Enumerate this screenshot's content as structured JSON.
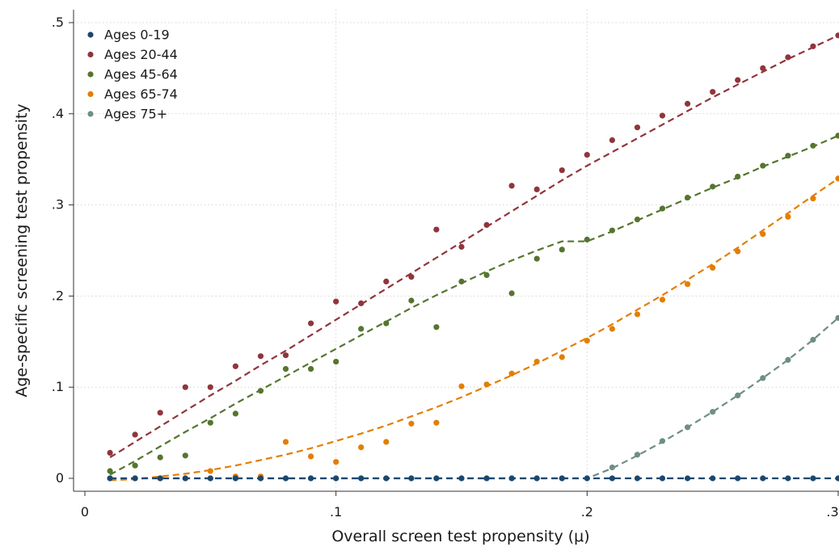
{
  "chart_data": {
    "type": "scatter",
    "xlabel": "Overall screen test propensity (μ)",
    "ylabel": "Age-specific screening test propensity",
    "xlim": [
      0,
      0.3
    ],
    "ylim": [
      0,
      0.5
    ],
    "x_ticks": [
      0,
      0.1,
      0.2,
      0.3
    ],
    "x_tick_labels": [
      "0",
      ".1",
      ".2",
      ".3"
    ],
    "y_ticks": [
      0,
      0.1,
      0.2,
      0.3,
      0.4,
      0.5
    ],
    "y_tick_labels": [
      "0",
      ".1",
      ".2",
      ".3",
      ".4",
      ".5"
    ],
    "grid": true,
    "legend_position": "top-left",
    "x": [
      0.01,
      0.02,
      0.03,
      0.04,
      0.05,
      0.06,
      0.07,
      0.08,
      0.09,
      0.1,
      0.11,
      0.12,
      0.13,
      0.14,
      0.15,
      0.16,
      0.17,
      0.18,
      0.19,
      0.2,
      0.21,
      0.22,
      0.23,
      0.24,
      0.25,
      0.26,
      0.27,
      0.28,
      0.29,
      0.3
    ],
    "series": [
      {
        "name": "Ages 0-19",
        "color": "#1a476f",
        "points": [
          0,
          0,
          0,
          0,
          0,
          0,
          0,
          0,
          0,
          0,
          0,
          0,
          0,
          0,
          0,
          0,
          0,
          0,
          0,
          0,
          0,
          0,
          0,
          0,
          0,
          0,
          0,
          0,
          0,
          0
        ],
        "fit": [
          0,
          0,
          0,
          0,
          0,
          0,
          0,
          0,
          0,
          0,
          0,
          0,
          0,
          0,
          0,
          0,
          0,
          0,
          0,
          0,
          0,
          0,
          0,
          0,
          0,
          0,
          0,
          0,
          0,
          0
        ]
      },
      {
        "name": "Ages 20-44",
        "color": "#90353b",
        "points": [
          0.028,
          0.048,
          0.072,
          0.1,
          0.1,
          0.123,
          0.134,
          0.135,
          0.17,
          0.194,
          0.192,
          0.216,
          0.221,
          0.273,
          0.254,
          0.278,
          0.321,
          0.317,
          0.338,
          0.355,
          0.371,
          0.385,
          0.398,
          0.411,
          0.424,
          0.437,
          0.45,
          0.462,
          0.474,
          0.486
        ],
        "fit": [
          0.023,
          0.04,
          0.057,
          0.074,
          0.091,
          0.107,
          0.124,
          0.14,
          0.157,
          0.174,
          0.191,
          0.208,
          0.225,
          0.242,
          0.259,
          0.276,
          0.293,
          0.31,
          0.327,
          0.343,
          0.358,
          0.373,
          0.388,
          0.403,
          0.418,
          0.432,
          0.446,
          0.46,
          0.473,
          0.486
        ]
      },
      {
        "name": "Ages 45-64",
        "color": "#55752f",
        "points": [
          0.008,
          0.014,
          0.023,
          0.025,
          0.061,
          0.071,
          0.096,
          0.12,
          0.12,
          0.128,
          0.164,
          0.17,
          0.195,
          0.166,
          0.216,
          0.223,
          0.203,
          0.241,
          0.251,
          0.262,
          0.272,
          0.284,
          0.296,
          0.308,
          0.32,
          0.331,
          0.343,
          0.354,
          0.365,
          0.376
        ],
        "fit": [
          0.004,
          0.019,
          0.035,
          0.051,
          0.066,
          0.082,
          0.097,
          0.112,
          0.127,
          0.142,
          0.157,
          0.172,
          0.187,
          0.201,
          0.214,
          0.227,
          0.239,
          0.25,
          0.26,
          0.26,
          0.271,
          0.283,
          0.295,
          0.307,
          0.319,
          0.33,
          0.342,
          0.353,
          0.364,
          0.376
        ]
      },
      {
        "name": "Ages 65-74",
        "color": "#e37e00",
        "points": [
          0,
          0,
          0,
          0,
          0.008,
          0.002,
          0.002,
          0.04,
          0.024,
          0.018,
          0.034,
          0.04,
          0.06,
          0.061,
          0.101,
          0.103,
          0.115,
          0.128,
          0.133,
          0.151,
          0.164,
          0.18,
          0.196,
          0.213,
          0.231,
          0.249,
          0.268,
          0.287,
          0.307,
          0.329
        ],
        "fit": [
          -0.002,
          -0.001,
          0.002,
          0.005,
          0.009,
          0.014,
          0.02,
          0.026,
          0.033,
          0.041,
          0.049,
          0.058,
          0.068,
          0.078,
          0.089,
          0.101,
          0.113,
          0.126,
          0.14,
          0.154,
          0.169,
          0.185,
          0.201,
          0.218,
          0.235,
          0.253,
          0.272,
          0.291,
          0.31,
          0.329
        ]
      },
      {
        "name": "Ages 75+",
        "color": "#6e8e84",
        "points": [
          0,
          0,
          0,
          0,
          0,
          0,
          0,
          0,
          0,
          0,
          0,
          0,
          0,
          0,
          0,
          0,
          0,
          0,
          0,
          0,
          0.012,
          0.026,
          0.041,
          0.056,
          0.073,
          0.091,
          0.11,
          0.13,
          0.152,
          0.176
        ],
        "fit": [
          0,
          0,
          0,
          0,
          0,
          0,
          0,
          0,
          0,
          0,
          0,
          0,
          0,
          0,
          0,
          0,
          0,
          0,
          0,
          0,
          0.011,
          0.025,
          0.04,
          0.056,
          0.073,
          0.091,
          0.11,
          0.13,
          0.152,
          0.176
        ]
      }
    ]
  }
}
